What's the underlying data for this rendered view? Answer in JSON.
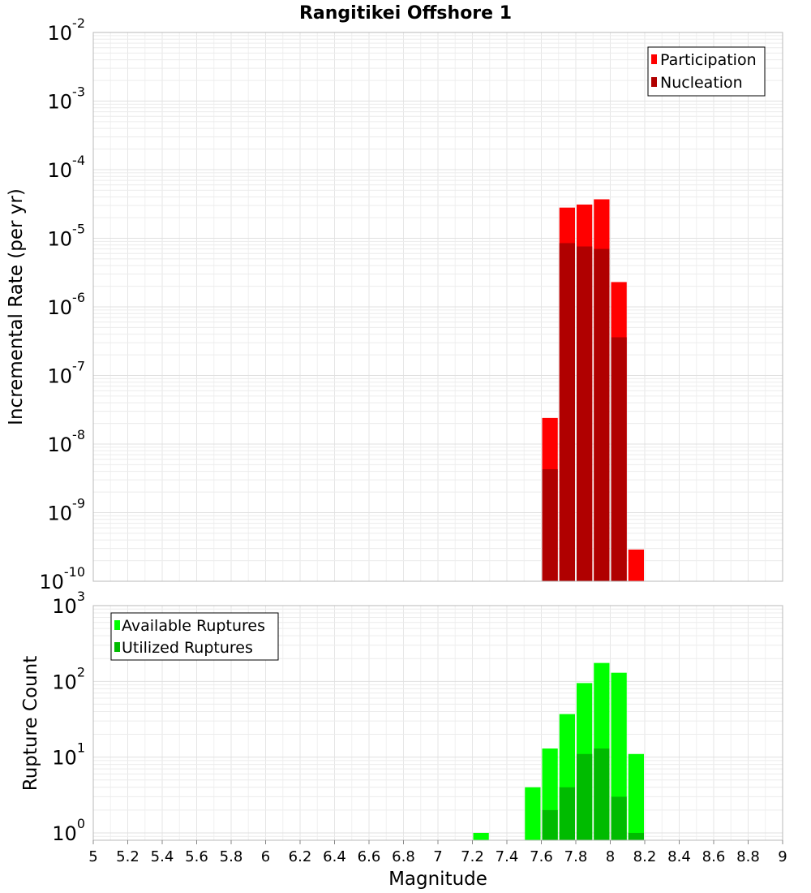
{
  "chart_data": [
    {
      "type": "bar",
      "panel": "top",
      "title": "Rangitikei Offshore 1",
      "ylabel": "Incremental Rate (per yr)",
      "xlabel": "",
      "x_range": [
        5,
        9
      ],
      "ylim": [
        1e-10,
        0.01
      ],
      "y_scale": "log",
      "y_tick_exponents": [
        -2,
        -3,
        -4,
        -5,
        -6,
        -7,
        -8,
        -9,
        -10
      ],
      "bin_width": 0.1,
      "grid": true,
      "legend_position": "top-right",
      "series": [
        {
          "name": "Participation",
          "color": "#ff0000",
          "x": [
            7.65,
            7.75,
            7.85,
            7.95,
            8.05,
            8.15
          ],
          "values": [
            2.4e-08,
            2.8e-05,
            3.1e-05,
            3.7e-05,
            2.3e-06,
            2.9e-10
          ]
        },
        {
          "name": "Nucleation",
          "color": "#b00000",
          "x": [
            7.65,
            7.75,
            7.85,
            7.95,
            8.05
          ],
          "values": [
            4.3e-09,
            8.5e-06,
            7.6e-06,
            7e-06,
            3.6e-07
          ]
        }
      ]
    },
    {
      "type": "bar",
      "panel": "bottom",
      "title": "",
      "ylabel": "Rupture Count",
      "xlabel": "Magnitude",
      "x_range": [
        5,
        9
      ],
      "ylim": [
        0.8,
        1000
      ],
      "y_scale": "log",
      "y_tick_exponents": [
        3,
        2,
        1,
        0
      ],
      "bin_width": 0.1,
      "grid": true,
      "legend_position": "top-left",
      "x_tick_labels": [
        "5",
        "5.2",
        "5.4",
        "5.6",
        "5.8",
        "6",
        "6.2",
        "6.4",
        "6.6",
        "6.8",
        "7",
        "7.2",
        "7.4",
        "7.6",
        "7.8",
        "8",
        "8.2",
        "8.4",
        "8.6",
        "8.8",
        "9"
      ],
      "x_ticks": [
        5,
        5.2,
        5.4,
        5.6,
        5.8,
        6,
        6.2,
        6.4,
        6.6,
        6.8,
        7,
        7.2,
        7.4,
        7.6,
        7.8,
        8,
        8.2,
        8.4,
        8.6,
        8.8,
        9
      ],
      "series": [
        {
          "name": "Available Ruptures",
          "color": "#00ff00",
          "x": [
            7.25,
            7.55,
            7.65,
            7.75,
            7.85,
            7.95,
            8.05,
            8.15
          ],
          "values": [
            1,
            4,
            13,
            37,
            95,
            175,
            130,
            11
          ]
        },
        {
          "name": "Utilized Ruptures",
          "color": "#00bb00",
          "x": [
            7.65,
            7.75,
            7.85,
            7.95,
            8.05,
            8.15
          ],
          "values": [
            2,
            4,
            11,
            13,
            3,
            1
          ]
        }
      ]
    }
  ]
}
